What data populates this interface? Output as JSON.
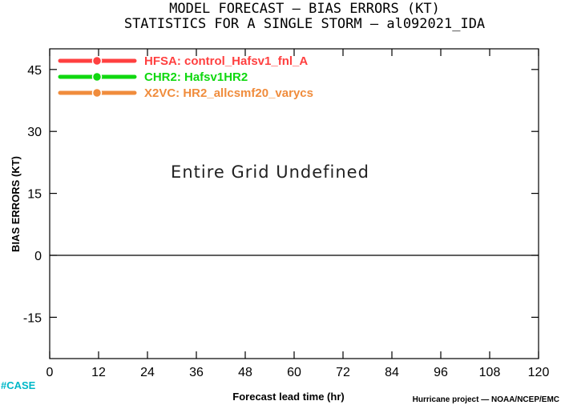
{
  "chart_data": {
    "type": "line",
    "title": "MODEL FORECAST — BIAS ERRORS (KT)",
    "subtitle": "STATISTICS FOR A SINGLE STORM — al092021_IDA",
    "xlabel": "Forecast lead time (hr)",
    "ylabel": "BIAS ERRORS (KT)",
    "xlim": [
      0,
      120
    ],
    "ylim": [
      -25,
      50
    ],
    "xticks": [
      0,
      12,
      24,
      36,
      48,
      60,
      72,
      84,
      96,
      108,
      120
    ],
    "yticks": [
      -15,
      0,
      15,
      30,
      45
    ],
    "zero_line": 0,
    "grid": false,
    "legend_position": "top-left",
    "annotation": "Entire Grid Undefined",
    "series": [
      {
        "name": "HFSA: control_Hafsv1_fnl_A",
        "color": "#ff4040",
        "values": []
      },
      {
        "name": "CHR2: Hafsv1HR2",
        "color": "#10d810",
        "values": []
      },
      {
        "name": "X2VC: HR2_allcsmf20_varycs",
        "color": "#f08c3c",
        "values": []
      }
    ]
  },
  "footer": {
    "case_label": "#CASE",
    "credit": "Hurricane project — NOAA/NCEP/EMC"
  }
}
